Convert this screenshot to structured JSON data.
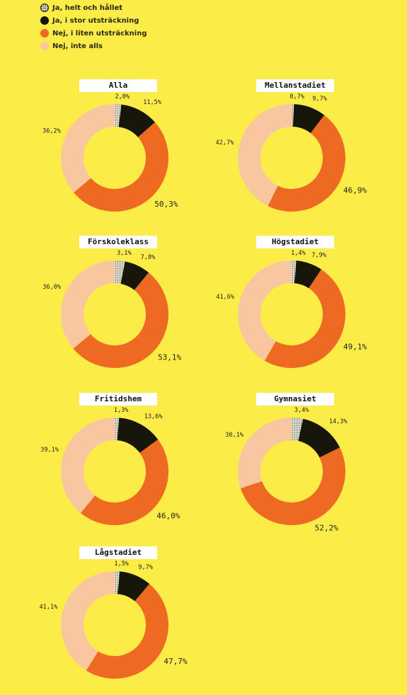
{
  "legend": [
    {
      "label": "Ja, helt och hållet",
      "color": "#f5f0e6",
      "pattern": "dots"
    },
    {
      "label": "Ja, i stor utsträckning",
      "color": "#16160a"
    },
    {
      "label": "Nej, i liten utsträckning",
      "color": "#EE6A22"
    },
    {
      "label": "Nej, inte alls",
      "color": "#F8C7A0"
    }
  ],
  "colors": {
    "background": "#FCEC48",
    "helt": "#f5f0e6",
    "stor": "#16160a",
    "liten": "#EE6A22",
    "inte": "#F8C7A0"
  },
  "chart_data": [
    {
      "type": "pie",
      "title": "Alla",
      "categories": [
        "Ja, helt och hållet",
        "Ja, i stor utsträckning",
        "Nej, i liten utsträckning",
        "Nej, inte alls"
      ],
      "values": [
        2.0,
        11.5,
        50.3,
        36.2
      ],
      "labels": [
        "2,0%",
        "11,5%",
        "50,3%",
        "36,2%"
      ]
    },
    {
      "type": "pie",
      "title": "Mellanstadiet",
      "categories": [
        "Ja, helt och hållet",
        "Ja, i stor utsträckning",
        "Nej, i liten utsträckning",
        "Nej, inte alls"
      ],
      "values": [
        0.7,
        9.7,
        46.9,
        42.7
      ],
      "labels": [
        "0,7%",
        "9,7%",
        "46,9%",
        "42,7%"
      ]
    },
    {
      "type": "pie",
      "title": "Förskoleklass",
      "categories": [
        "Ja, helt och hållet",
        "Ja, i stor utsträckning",
        "Nej, i liten utsträckning",
        "Nej, inte alls"
      ],
      "values": [
        3.1,
        7.8,
        53.1,
        36.0
      ],
      "labels": [
        "3,1%",
        "7,8%",
        "53,1%",
        "36,0%"
      ]
    },
    {
      "type": "pie",
      "title": "Högstadiet",
      "categories": [
        "Ja, helt och hållet",
        "Ja, i stor utsträckning",
        "Nej, i liten utsträckning",
        "Nej, inte alls"
      ],
      "values": [
        1.4,
        7.9,
        49.1,
        41.6
      ],
      "labels": [
        "1,4%",
        "7,9%",
        "49,1%",
        "41,6%"
      ]
    },
    {
      "type": "pie",
      "title": "Fritidshem",
      "categories": [
        "Ja, helt och hållet",
        "Ja, i stor utsträckning",
        "Nej, i liten utsträckning",
        "Nej, inte alls"
      ],
      "values": [
        1.3,
        13.6,
        46.0,
        39.1
      ],
      "labels": [
        "1,3%",
        "13,6%",
        "46,0%",
        "39,1%"
      ]
    },
    {
      "type": "pie",
      "title": "Gymnasiet",
      "categories": [
        "Ja, helt och hållet",
        "Ja, i stor utsträckning",
        "Nej, i liten utsträckning",
        "Nej, inte alls"
      ],
      "values": [
        3.4,
        14.3,
        52.2,
        30.1
      ],
      "labels": [
        "3,4%",
        "14,3%",
        "52,2%",
        "30,1%"
      ]
    },
    {
      "type": "pie",
      "title": "Lågstadiet",
      "categories": [
        "Ja, helt och hållet",
        "Ja, i stor utsträckning",
        "Nej, i liten utsträckning",
        "Nej, inte alls"
      ],
      "values": [
        1.5,
        9.7,
        47.7,
        41.1
      ],
      "labels": [
        "1,5%",
        "9,7%",
        "47,7%",
        "41,1%"
      ]
    }
  ]
}
